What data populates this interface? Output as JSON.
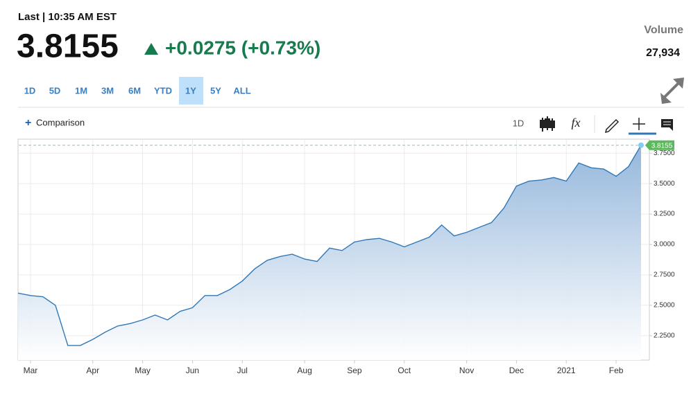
{
  "header": {
    "last_label": "Last | 10:35 AM EST",
    "price": "3.8155",
    "change": "+0.0275 (+0.73%)",
    "volume_label": "Volume",
    "volume": "27,934"
  },
  "ranges": [
    "1D",
    "5D",
    "1M",
    "3M",
    "6M",
    "YTD",
    "1Y",
    "5Y",
    "ALL"
  ],
  "selected_range": "1Y",
  "toolbar": {
    "comparison": "Comparison",
    "interval": "1D"
  },
  "chart_data": {
    "type": "area",
    "categories": [
      null,
      "Mar",
      null,
      null,
      null,
      null,
      "Apr",
      null,
      null,
      null,
      "May",
      null,
      null,
      null,
      "Jun",
      null,
      null,
      null,
      "Jul",
      null,
      null,
      null,
      null,
      "Aug",
      null,
      null,
      null,
      "Sep",
      null,
      null,
      null,
      "Oct",
      null,
      null,
      null,
      null,
      "Nov",
      null,
      null,
      null,
      "Dec",
      null,
      null,
      null,
      "2021",
      null,
      null,
      null,
      "Feb",
      null,
      null
    ],
    "series": [
      {
        "color": "#2f78b7",
        "values": [
          2.6,
          2.58,
          2.57,
          2.5,
          2.17,
          2.17,
          2.22,
          2.28,
          2.33,
          2.35,
          2.38,
          2.42,
          2.38,
          2.45,
          2.48,
          2.58,
          2.58,
          2.63,
          2.7,
          2.8,
          2.87,
          2.9,
          2.92,
          2.88,
          2.86,
          2.97,
          2.95,
          3.02,
          3.04,
          3.05,
          3.02,
          2.98,
          3.02,
          3.06,
          3.16,
          3.07,
          3.1,
          3.14,
          3.18,
          3.3,
          3.48,
          3.52,
          3.53,
          3.55,
          3.52,
          3.67,
          3.63,
          3.62,
          3.56,
          3.64,
          3.8155
        ]
      }
    ],
    "ylim": [
      2.05,
      3.865
    ],
    "yticks": [
      {
        "value": 2.25,
        "label": "2.2500"
      },
      {
        "value": 2.5,
        "label": "2.5000"
      },
      {
        "value": 2.75,
        "label": "2.7500"
      },
      {
        "value": 3,
        "label": "3.0000"
      },
      {
        "value": 3.25,
        "label": "3.2500"
      },
      {
        "value": 3.5,
        "label": "3.5000"
      },
      {
        "value": 3.75,
        "label": "3.7500"
      }
    ],
    "grid": true
  }
}
